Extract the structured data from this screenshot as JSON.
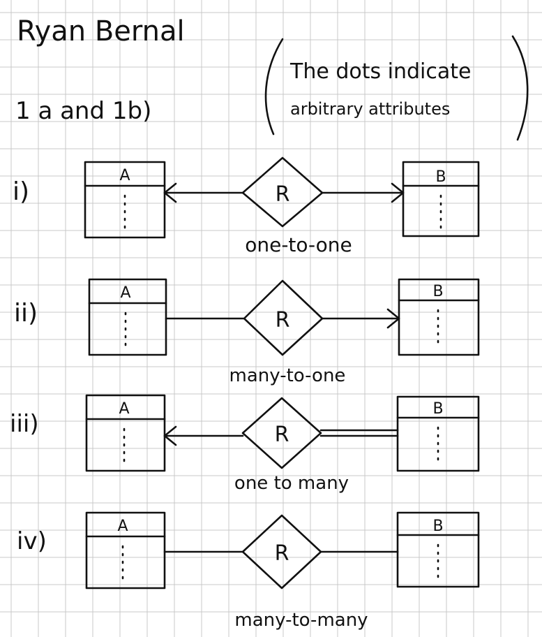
{
  "header": {
    "author": "Ryan Bernal",
    "problem": "1 a and 1b)",
    "note_line1": "The dots indicate",
    "note_line2": "arbitrary attributes"
  },
  "diagrams": [
    {
      "numeral": "i)",
      "entity_a": "A",
      "relationship": "R",
      "entity_b": "B",
      "caption": "one-to-one",
      "arrow_a": true,
      "arrow_b": true,
      "double_line_b": false
    },
    {
      "numeral": "ii)",
      "entity_a": "A",
      "relationship": "R",
      "entity_b": "B",
      "caption": "many-to-one",
      "arrow_a": false,
      "arrow_b": true,
      "double_line_b": false
    },
    {
      "numeral": "iii)",
      "entity_a": "A",
      "relationship": "R",
      "entity_b": "B",
      "caption": "one to many",
      "arrow_a": true,
      "arrow_b": false,
      "double_line_b": true
    },
    {
      "numeral": "iv)",
      "entity_a": "A",
      "relationship": "R",
      "entity_b": "B",
      "caption": "many-to-many",
      "arrow_a": false,
      "arrow_b": false,
      "double_line_b": false
    }
  ]
}
